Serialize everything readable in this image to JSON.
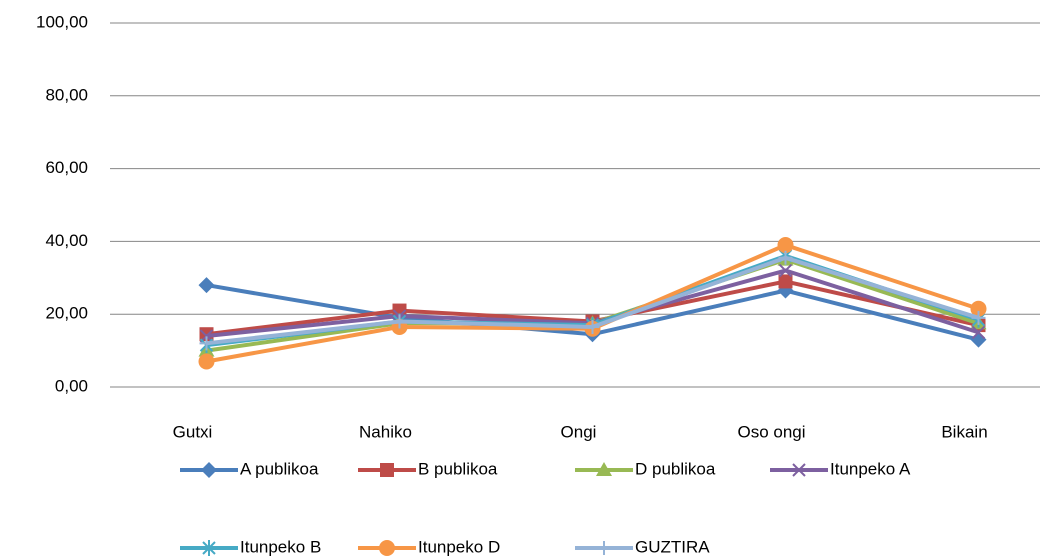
{
  "chart_data": {
    "type": "line",
    "categories": [
      "Gutxi",
      "Nahiko",
      "Ongi",
      "Oso ongi",
      "Bikain"
    ],
    "ylim": [
      0,
      100
    ],
    "yticks": [
      {
        "value": 0,
        "label": "0,00"
      },
      {
        "value": 20,
        "label": "20,00"
      },
      {
        "value": 40,
        "label": "40,00"
      },
      {
        "value": 60,
        "label": "60,00"
      },
      {
        "value": 80,
        "label": "80,00"
      },
      {
        "value": 100,
        "label": "100,00"
      }
    ],
    "grid": true,
    "legend": "bottom",
    "series": [
      {
        "name": "A publikoa",
        "color": "#4a7ebb",
        "marker": "diamond",
        "values": [
          28,
          19,
          14.5,
          26.5,
          13
        ]
      },
      {
        "name": "B publikoa",
        "color": "#be4b48",
        "marker": "square",
        "values": [
          14.5,
          21,
          18,
          29,
          17
        ]
      },
      {
        "name": "D publikoa",
        "color": "#98b954",
        "marker": "triangle",
        "values": [
          10,
          17.5,
          17.5,
          35,
          17.5
        ]
      },
      {
        "name": "Itunpeko A",
        "color": "#7d60a0",
        "marker": "x",
        "values": [
          14,
          19.5,
          17.5,
          32,
          15
        ]
      },
      {
        "name": "Itunpeko B",
        "color": "#46aac5",
        "marker": "star",
        "values": [
          11.5,
          18,
          17,
          36,
          18.5
        ]
      },
      {
        "name": "Itunpeko D",
        "color": "#f79646",
        "marker": "circle",
        "values": [
          7,
          16.5,
          16,
          39,
          21.5
        ]
      },
      {
        "name": "GUZTIRA",
        "color": "#95b3d7",
        "marker": "plus",
        "values": [
          12,
          18,
          16.5,
          35.5,
          19
        ]
      }
    ]
  }
}
